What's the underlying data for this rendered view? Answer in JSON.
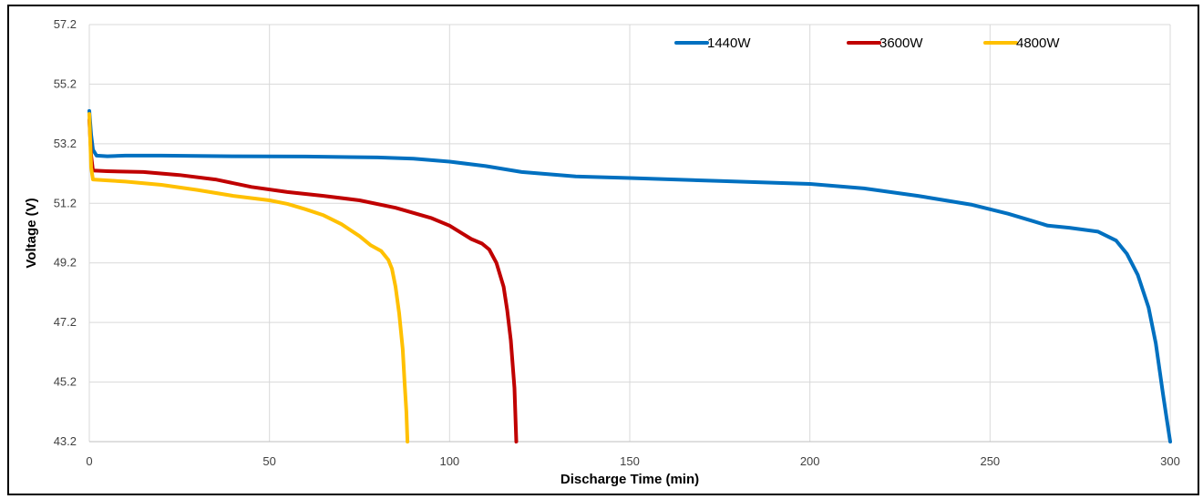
{
  "chart_data": {
    "type": "line",
    "title": "",
    "xlabel": "Discharge Time (min)",
    "ylabel": "Voltage (V)",
    "xlim": [
      0,
      300
    ],
    "ylim": [
      43.2,
      57.2
    ],
    "xticks": [
      0,
      50,
      100,
      150,
      200,
      250,
      300
    ],
    "yticks": [
      43.2,
      45.2,
      47.2,
      49.2,
      51.2,
      53.2,
      55.2,
      57.2
    ],
    "grid": true,
    "legend_position": "top-right",
    "series": [
      {
        "name": "1440W",
        "color": "#0070C0",
        "x": [
          0,
          0.5,
          1,
          2,
          5,
          10,
          20,
          40,
          60,
          80,
          90,
          100,
          110,
          120,
          135,
          150,
          175,
          200,
          215,
          230,
          245,
          255,
          262,
          266,
          272,
          280,
          285,
          288,
          291,
          294,
          296,
          298,
          299,
          300
        ],
        "y": [
          54.3,
          53.5,
          53.0,
          52.8,
          52.78,
          52.8,
          52.8,
          52.78,
          52.77,
          52.74,
          52.7,
          52.6,
          52.45,
          52.25,
          52.1,
          52.05,
          51.95,
          51.85,
          51.7,
          51.45,
          51.15,
          50.85,
          50.6,
          50.45,
          50.38,
          50.25,
          49.95,
          49.5,
          48.8,
          47.7,
          46.5,
          44.8,
          44.0,
          43.2
        ]
      },
      {
        "name": "3600W",
        "color": "#C00000",
        "x": [
          0,
          0.5,
          1,
          5,
          15,
          25,
          35,
          45,
          55,
          65,
          75,
          85,
          95,
          100,
          104,
          106,
          109,
          111,
          113,
          115,
          116,
          117,
          118,
          118.5
        ],
        "y": [
          54.0,
          52.8,
          52.3,
          52.28,
          52.25,
          52.15,
          52.0,
          51.75,
          51.58,
          51.45,
          51.3,
          51.05,
          50.7,
          50.45,
          50.15,
          50.0,
          49.85,
          49.65,
          49.2,
          48.4,
          47.6,
          46.6,
          45.0,
          43.2
        ]
      },
      {
        "name": "4800W",
        "color": "#FFC000",
        "x": [
          0,
          0.5,
          1,
          5,
          10,
          20,
          30,
          40,
          50,
          55,
          60,
          65,
          70,
          75,
          78,
          81,
          83,
          84,
          85,
          86,
          87,
          87.5,
          88,
          88.3
        ],
        "y": [
          54.2,
          52.4,
          52.0,
          51.97,
          51.93,
          51.82,
          51.65,
          51.45,
          51.3,
          51.18,
          51.0,
          50.8,
          50.5,
          50.1,
          49.8,
          49.6,
          49.3,
          49.0,
          48.4,
          47.5,
          46.3,
          45.2,
          44.2,
          43.2
        ]
      }
    ]
  }
}
